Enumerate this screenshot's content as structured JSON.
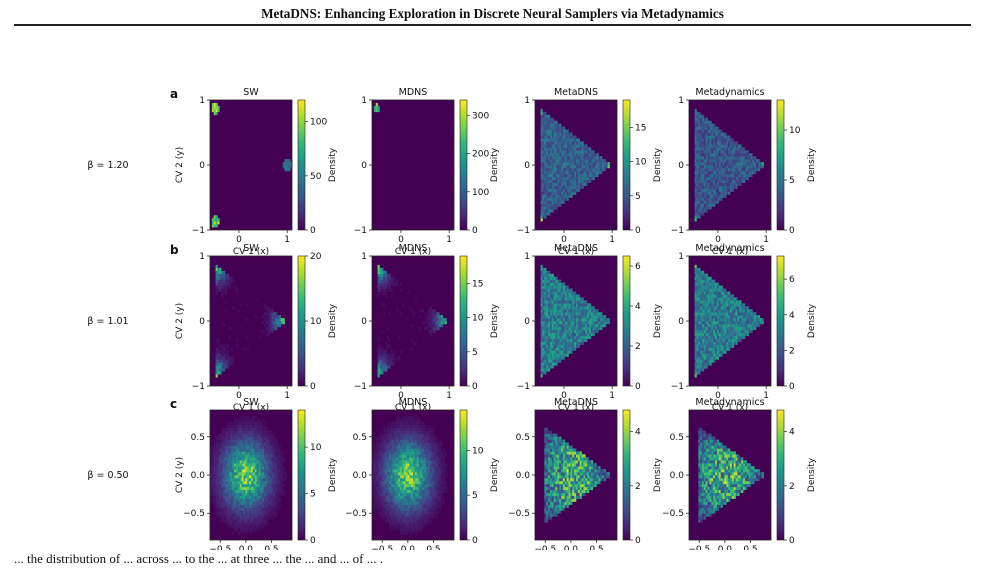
{
  "paper": {
    "running_header": "MetaDNS: Enhancing Exploration in Discrete Neural Samplers via Metadynamics",
    "caption_partial": "... the distribution of ... across ... to the ... at three ... the ... and ... of ... ."
  },
  "figure": {
    "panel_methods": [
      "SW",
      "MDNS",
      "MetaDNS",
      "Metadynamics"
    ],
    "xlabel": "CV 1 (x)",
    "ylabel": "CV 2 (y)",
    "colorbar_label": "Density",
    "rows": [
      {
        "letter": "a",
        "beta_label": "β = 1.20",
        "axis": {
          "xticks": [
            "0",
            "1"
          ],
          "yticks": [
            "1",
            "0",
            "−1"
          ],
          "xlim": [
            -0.6,
            1.1
          ],
          "ylim": [
            -1.0,
            1.0
          ]
        },
        "colorbars": [
          {
            "max": 120,
            "ticks": [
              "100",
              "50",
              "0"
            ],
            "tick_values": [
              100,
              50,
              0
            ]
          },
          {
            "max": 340,
            "ticks": [
              "300",
              "200",
              "100",
              "0"
            ],
            "tick_values": [
              300,
              200,
              100,
              0
            ]
          },
          {
            "max": 19,
            "ticks": [
              "15",
              "10",
              "5",
              "0"
            ],
            "tick_values": [
              15,
              10,
              5,
              0
            ]
          },
          {
            "max": 13,
            "ticks": [
              "10",
              "5",
              "0"
            ],
            "tick_values": [
              10,
              5,
              0
            ]
          }
        ]
      },
      {
        "letter": "b",
        "beta_label": "β = 1.01",
        "axis": {
          "xticks": [
            "0",
            "1"
          ],
          "yticks": [
            "1",
            "0",
            "−1"
          ],
          "xlim": [
            -0.6,
            1.1
          ],
          "ylim": [
            -1.0,
            1.0
          ]
        },
        "colorbars": [
          {
            "max": 20,
            "ticks": [
              "20",
              "10",
              "0"
            ],
            "tick_values": [
              20,
              10,
              0
            ]
          },
          {
            "max": 19,
            "ticks": [
              "15",
              "10",
              "5",
              "0"
            ],
            "tick_values": [
              15,
              10,
              5,
              0
            ]
          },
          {
            "max": 6.5,
            "ticks": [
              "6",
              "4",
              "2",
              "0"
            ],
            "tick_values": [
              6,
              4,
              2,
              0
            ]
          },
          {
            "max": 7.3,
            "ticks": [
              "6",
              "4",
              "2",
              "0"
            ],
            "tick_values": [
              6,
              4,
              2,
              0
            ]
          }
        ]
      },
      {
        "letter": "c",
        "beta_label": "β = 0.50",
        "axis": {
          "xticks": [
            "−0.5",
            "0.0",
            "0.5"
          ],
          "yticks": [
            "0.5",
            "0.0",
            "−0.5"
          ],
          "xlim": [
            -0.7,
            0.9
          ],
          "ylim": [
            -0.85,
            0.85
          ]
        },
        "colorbars": [
          {
            "max": 14,
            "ticks": [
              "10",
              "5",
              "0"
            ],
            "tick_values": [
              10,
              5,
              0
            ]
          },
          {
            "max": 14.5,
            "ticks": [
              "10",
              "5",
              "0"
            ],
            "tick_values": [
              10,
              5,
              0
            ]
          },
          {
            "max": 4.8,
            "ticks": [
              "4",
              "2",
              "0"
            ],
            "tick_values": [
              4,
              2,
              0
            ]
          },
          {
            "max": 4.8,
            "ticks": [
              "4",
              "2",
              "0"
            ],
            "tick_values": [
              4,
              2,
              0
            ]
          }
        ]
      }
    ]
  },
  "colors": {
    "colormap_low": "#440154",
    "colormap_high": "#fde725"
  }
}
